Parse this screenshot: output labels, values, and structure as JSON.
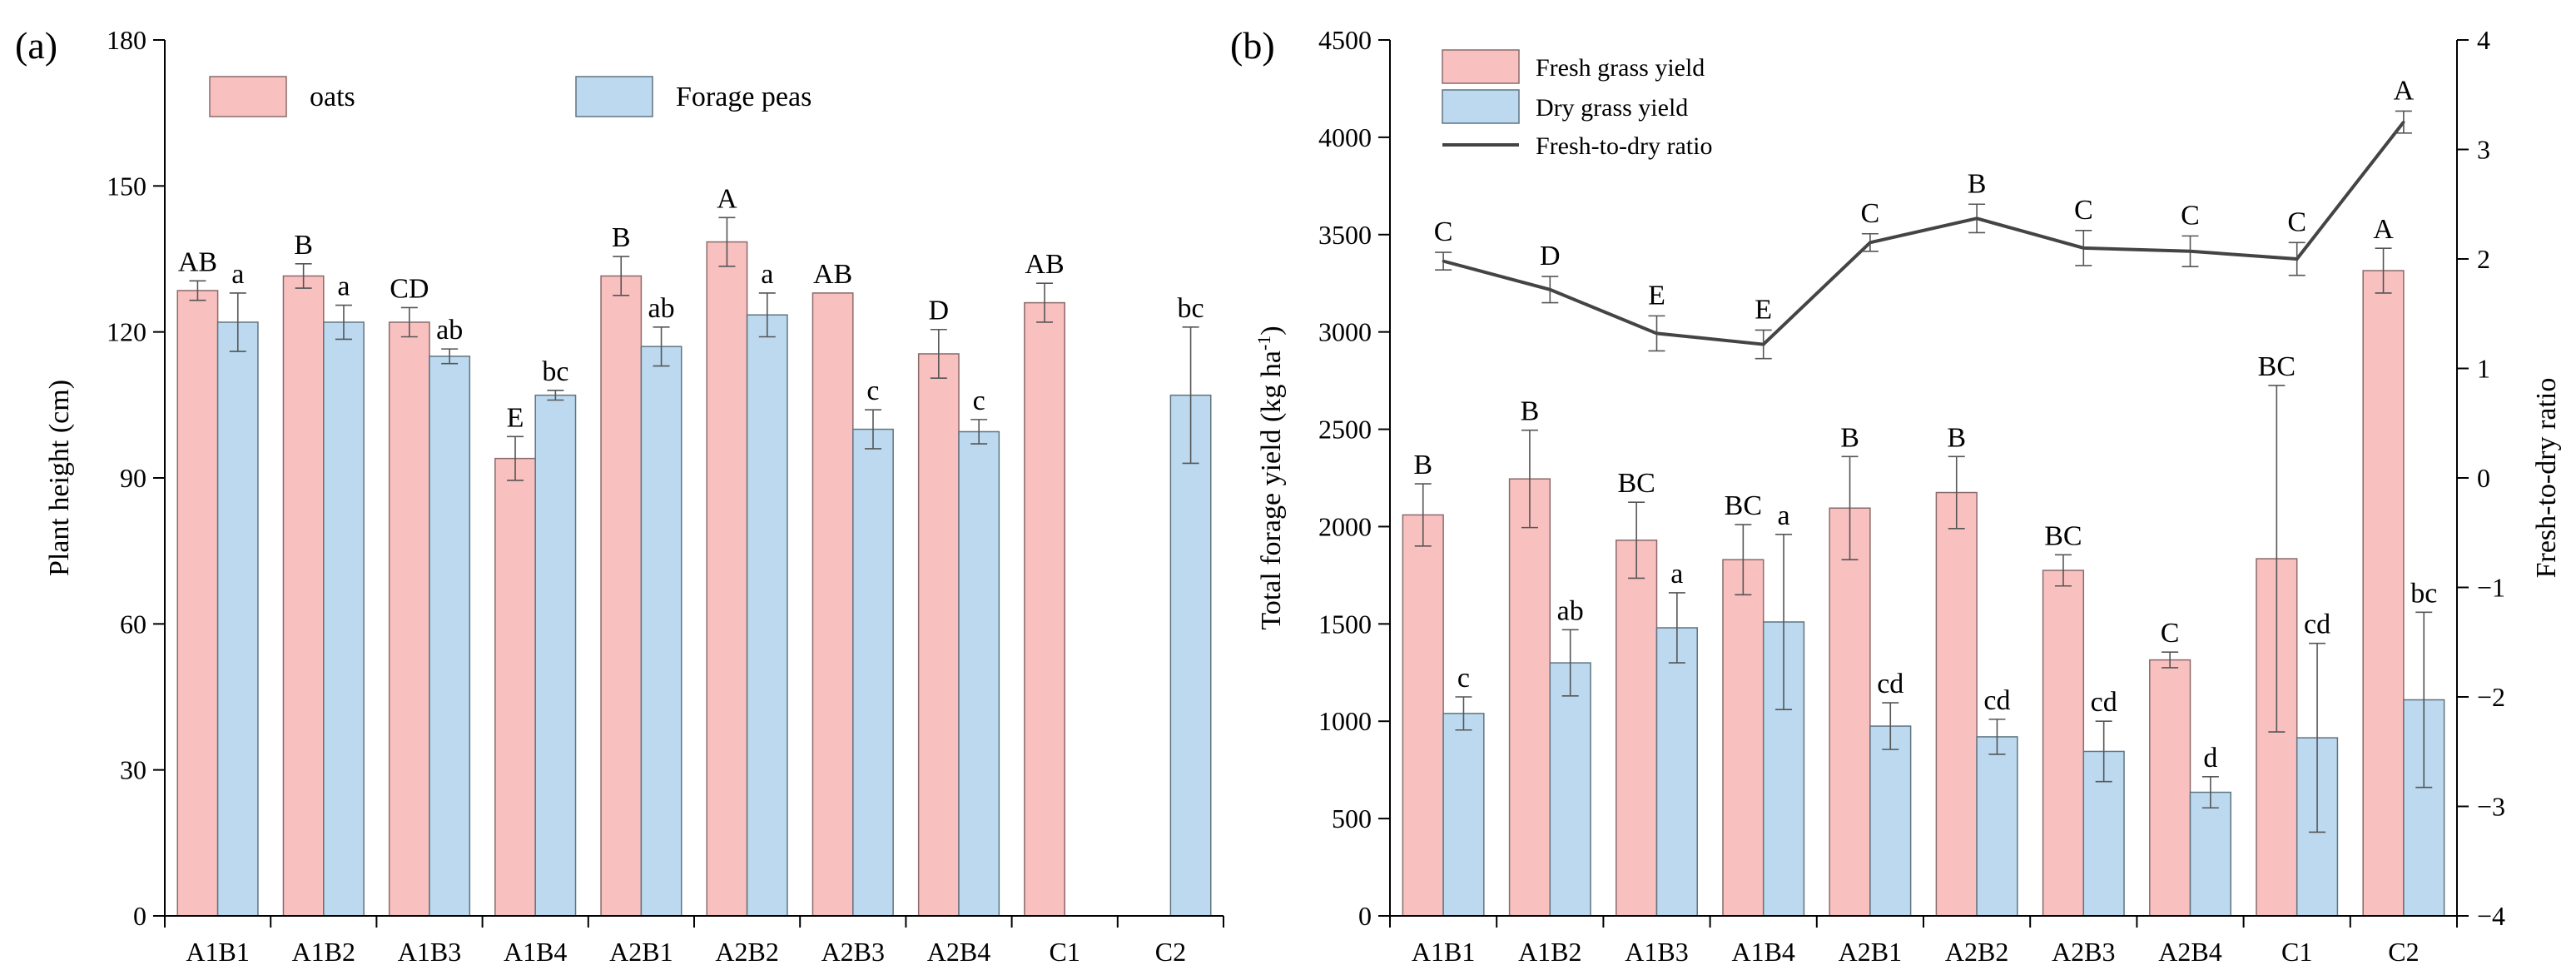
{
  "chart_data": [
    {
      "id": "panel-a",
      "type": "bar",
      "panel_label": "(a)",
      "ylabel": "Plant height (cm)",
      "xlabel": "",
      "ylim": [
        0,
        180
      ],
      "yticks": [
        0,
        30,
        60,
        90,
        120,
        150,
        180
      ],
      "categories": [
        "A1B1",
        "A1B2",
        "A1B3",
        "A1B4",
        "A2B1",
        "A2B2",
        "A2B3",
        "A2B4",
        "C1",
        "C2"
      ],
      "legend_position": "top",
      "series": [
        {
          "name": "oats",
          "color": "#f9c0c0",
          "values": [
            128.5,
            131.5,
            122,
            94,
            131.5,
            138.5,
            128,
            115.5,
            126,
            null
          ],
          "errors": [
            2,
            2.5,
            3,
            4.5,
            4,
            5,
            0,
            5,
            4,
            null
          ],
          "letters": [
            "AB",
            "B",
            "CD",
            "E",
            "B",
            "A",
            "AB",
            "D",
            "AB",
            ""
          ]
        },
        {
          "name": "Forage peas",
          "color": "#bcd9ef",
          "values": [
            122,
            122,
            115,
            107,
            117,
            123.5,
            100,
            99.5,
            null,
            107
          ],
          "errors": [
            6,
            3.5,
            1.5,
            1,
            4,
            4.5,
            4,
            2.5,
            null,
            14
          ],
          "letters": [
            "a",
            "a",
            "ab",
            "bc",
            "ab",
            "a",
            "c",
            "c",
            "",
            "bc"
          ]
        }
      ]
    },
    {
      "id": "panel-b",
      "type": "bar",
      "panel_label": "(b)",
      "ylabel": "Total forage yield (kg ha",
      "ylabel_superscript": "-1",
      "ylabel_close": ")",
      "y2label": "Fresh-to-dry ratio",
      "xlabel": "",
      "ylim": [
        0,
        4500
      ],
      "yticks": [
        0,
        500,
        1000,
        1500,
        2000,
        2500,
        3000,
        3500,
        4000,
        4500
      ],
      "y2lim": [
        -4,
        4
      ],
      "y2ticks": [
        -4,
        -3,
        -2,
        -1,
        0,
        1,
        2,
        3,
        4
      ],
      "y2ticklabels": [
        "−4",
        "−3",
        "−2",
        "−1",
        "0",
        "1",
        "2",
        "3",
        "4"
      ],
      "categories": [
        "A1B1",
        "A1B2",
        "A1B3",
        "A1B4",
        "A2B1",
        "A2B2",
        "A2B3",
        "A2B4",
        "C1",
        "C2"
      ],
      "legend_position": "top-left",
      "series": [
        {
          "name": "Fresh grass yield",
          "color": "#f9c0c0",
          "values": [
            2060,
            2245,
            1930,
            1830,
            2095,
            2175,
            1775,
            1315,
            1835,
            3315
          ],
          "errors": [
            160,
            250,
            195,
            180,
            265,
            185,
            80,
            40,
            890,
            115
          ],
          "letters": [
            "B",
            "B",
            "BC",
            "BC",
            "B",
            "B",
            "BC",
            "C",
            "BC",
            "A"
          ]
        },
        {
          "name": "Dry grass yield",
          "color": "#bcd9ef",
          "values": [
            1040,
            1300,
            1480,
            1510,
            975,
            920,
            845,
            635,
            915,
            1110
          ],
          "errors": [
            85,
            170,
            180,
            450,
            120,
            90,
            155,
            80,
            485,
            450
          ],
          "letters": [
            "c",
            "ab",
            "a",
            "a",
            "cd",
            "cd",
            "cd",
            "d",
            "cd",
            "bc"
          ]
        },
        {
          "name": "Fresh-to-dry ratio",
          "type": "line",
          "axis": "y2",
          "color": "#444444",
          "values": [
            1.98,
            1.72,
            1.32,
            1.22,
            2.15,
            2.37,
            2.1,
            2.07,
            2.0,
            3.25
          ],
          "errors": [
            0.08,
            0.12,
            0.16,
            0.13,
            0.08,
            0.13,
            0.16,
            0.14,
            0.15,
            0.1
          ],
          "letters": [
            "C",
            "D",
            "E",
            "E",
            "C",
            "B",
            "C",
            "C",
            "C",
            "A"
          ]
        }
      ]
    }
  ]
}
